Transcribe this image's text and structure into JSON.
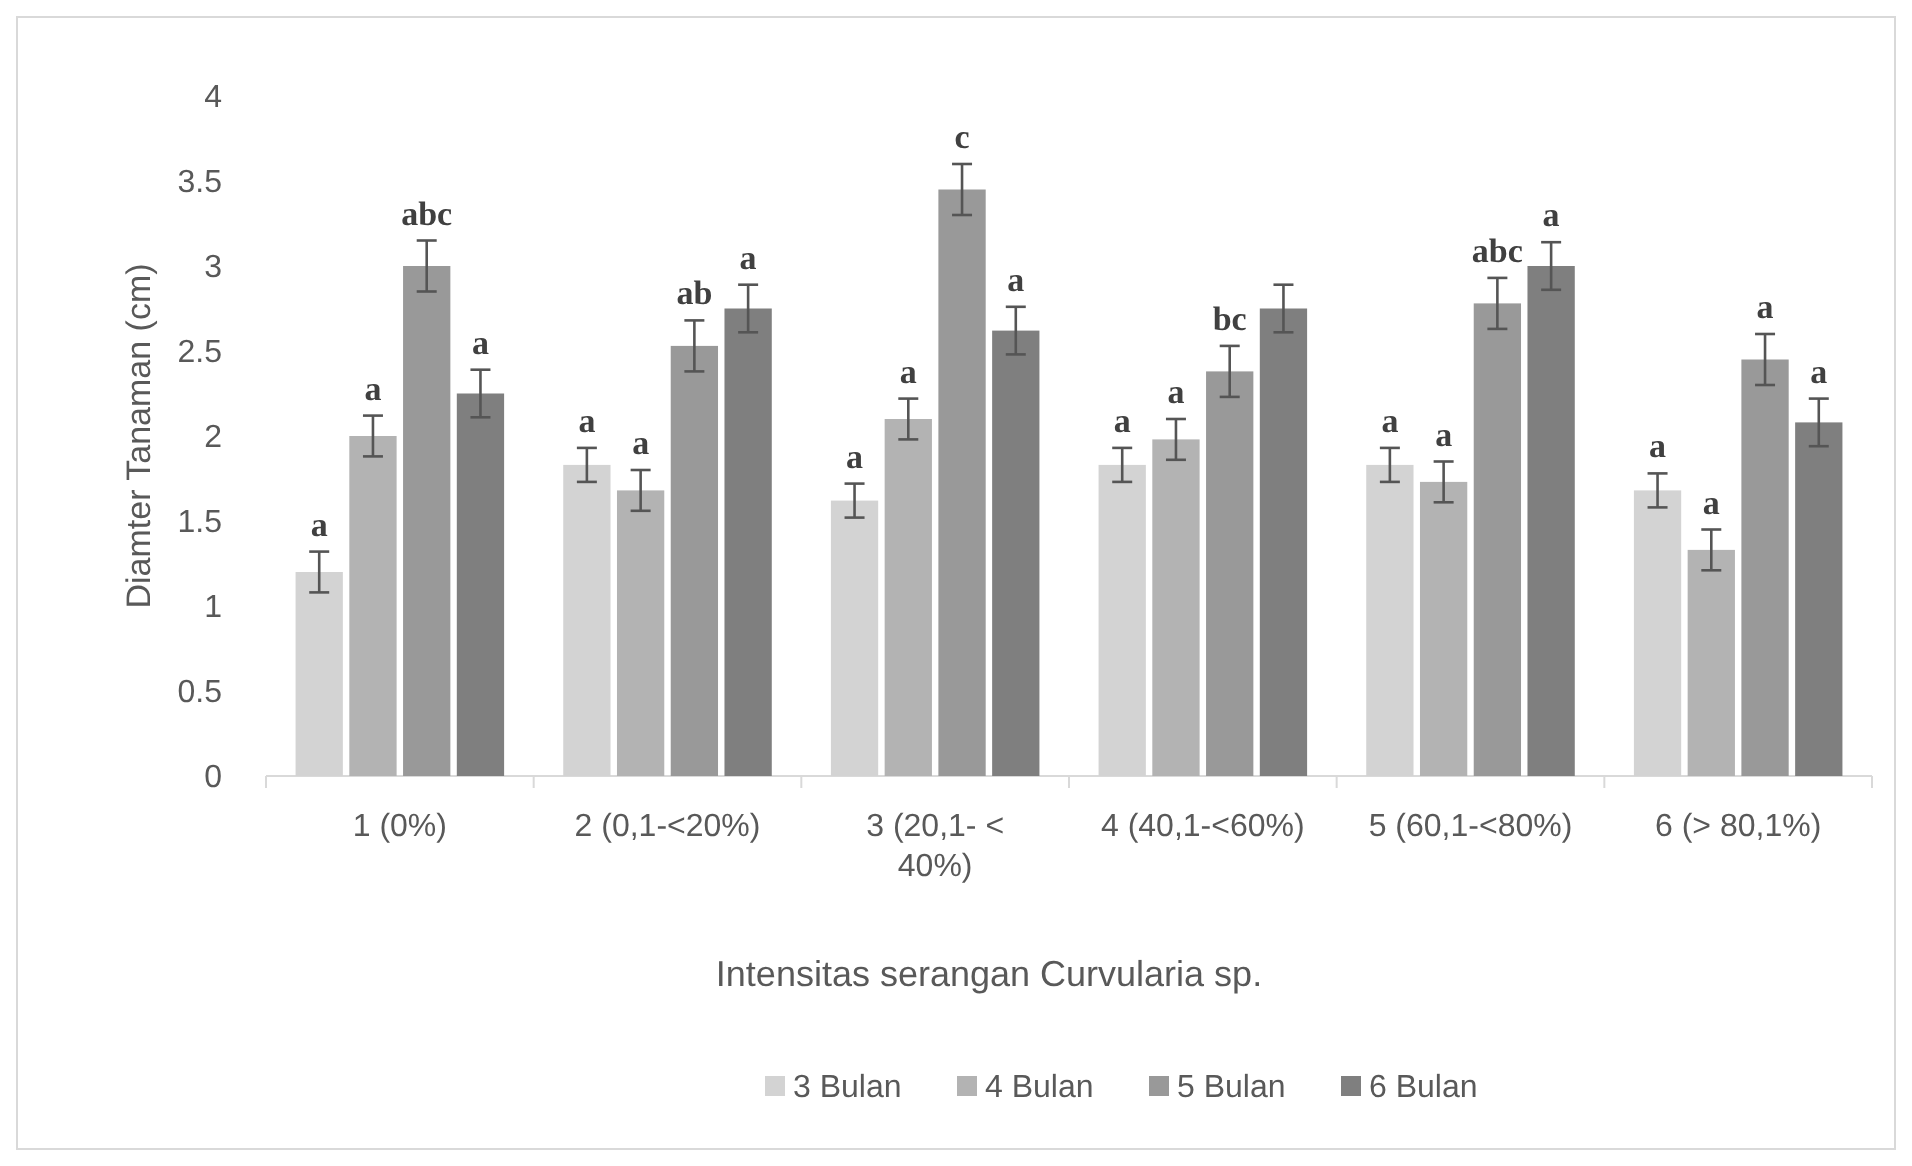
{
  "chart_data": {
    "type": "bar",
    "xlabel": "Intensitas serangan Curvularia sp.",
    "ylabel": "Diamter Tanaman (cm)",
    "categories": [
      "1 (0%)",
      "2 (0,1-<20%)",
      "3 (20,1- < 40%)",
      "4 (40,1-<60%)",
      "5 (60,1-<80%)",
      "6 (> 80,1%)"
    ],
    "ylim": [
      0,
      4
    ],
    "yticks": [
      0,
      0.5,
      1,
      1.5,
      2,
      2.5,
      3,
      3.5,
      4
    ],
    "grid": false,
    "legend": "bottom",
    "series": [
      {
        "name": "3 Bulan",
        "color": "#d3d3d3",
        "values": [
          1.2,
          1.83,
          1.62,
          1.83,
          1.83,
          1.68
        ],
        "errors": [
          0.12,
          0.1,
          0.1,
          0.1,
          0.1,
          0.1
        ],
        "value_labels": [
          "a",
          "a",
          "a",
          "a",
          "a",
          "a"
        ]
      },
      {
        "name": "4 Bulan",
        "color": "#b3b3b3",
        "values": [
          2.0,
          1.68,
          2.1,
          1.98,
          1.73,
          1.33
        ],
        "errors": [
          0.12,
          0.12,
          0.12,
          0.12,
          0.12,
          0.12
        ],
        "value_labels": [
          "a",
          "a",
          "a",
          "a",
          "a",
          "a"
        ]
      },
      {
        "name": "5 Bulan",
        "color": "#999999",
        "values": [
          3.0,
          2.53,
          3.45,
          2.38,
          2.78,
          2.45
        ],
        "errors": [
          0.15,
          0.15,
          0.15,
          0.15,
          0.15,
          0.15
        ],
        "value_labels": [
          "abc",
          "ab",
          "c",
          "bc",
          "abc",
          "a"
        ]
      },
      {
        "name": "6 Bulan",
        "color": "#7f7f7f",
        "values": [
          2.25,
          2.75,
          2.62,
          2.75,
          3.0,
          2.08
        ],
        "errors": [
          0.14,
          0.14,
          0.14,
          0.14,
          0.14,
          0.14
        ],
        "value_labels": [
          "a",
          "a",
          "a",
          null,
          "a",
          "a"
        ]
      }
    ]
  }
}
